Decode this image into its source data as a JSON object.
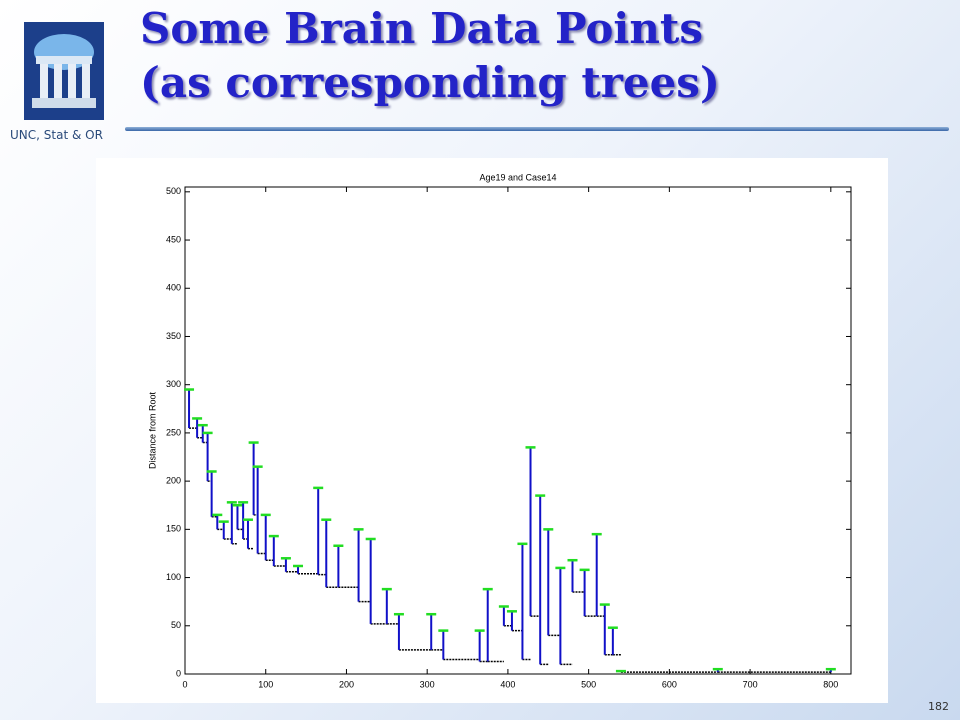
{
  "slide": {
    "title": [
      "Some Brain Data Points",
      "(as corresponding trees)"
    ],
    "logo_caption": "UNC, Stat & OR",
    "page_number": "182"
  },
  "chart_data": {
    "type": "tree",
    "title": "Age19 and Case14",
    "y_label": "Distance from Root",
    "x": [
      5,
      15,
      22,
      28,
      33,
      40,
      48,
      58,
      65,
      72,
      78,
      85,
      90,
      100,
      110,
      125,
      140,
      165,
      175,
      190,
      215,
      230,
      250,
      265,
      305,
      320,
      365,
      375,
      395,
      405,
      418,
      428,
      440,
      450,
      465,
      480,
      495,
      510,
      520,
      530,
      540,
      660,
      800
    ],
    "top": [
      295,
      265,
      258,
      250,
      210,
      165,
      158,
      178,
      175,
      178,
      160,
      240,
      215,
      165,
      143,
      120,
      112,
      193,
      160,
      133,
      150,
      140,
      88,
      62,
      62,
      45,
      45,
      88,
      70,
      65,
      135,
      235,
      185,
      150,
      110,
      118,
      108,
      145,
      72,
      48,
      3,
      5,
      5
    ],
    "base": [
      255,
      245,
      240,
      200,
      163,
      150,
      140,
      135,
      150,
      140,
      130,
      165,
      125,
      118,
      112,
      106,
      104,
      103,
      90,
      90,
      75,
      52,
      52,
      25,
      25,
      15,
      13,
      13,
      50,
      45,
      15,
      60,
      10,
      40,
      10,
      85,
      60,
      60,
      20,
      20,
      2,
      2,
      2
    ],
    "branch_color": "#1010c8",
    "tip_color": "#22dd22",
    "base_color": "#000000",
    "xlim": [
      0,
      825
    ],
    "xticks": [
      0,
      100,
      200,
      300,
      400,
      500,
      600,
      700,
      800
    ],
    "ylim": [
      0,
      505
    ],
    "yticks": [
      0,
      50,
      100,
      150,
      200,
      250,
      300,
      350,
      400,
      450,
      500
    ]
  }
}
